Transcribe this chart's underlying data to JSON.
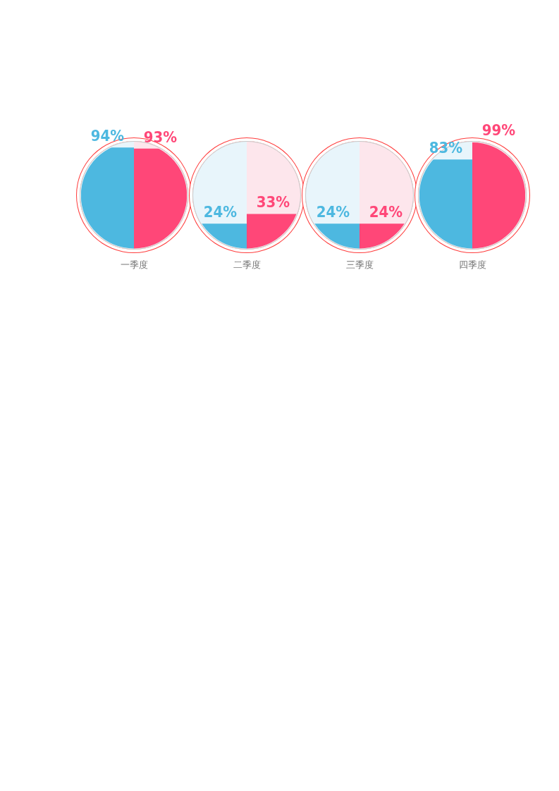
{
  "chart_data": {
    "type": "bar",
    "categories": [
      "一季度",
      "二季度",
      "三季度",
      "四季度"
    ],
    "series": [
      {
        "color": "#4db8e0",
        "values": [
          94,
          24,
          24,
          83
        ],
        "value_labels": [
          "94%",
          "24%",
          "24%",
          "83%"
        ]
      },
      {
        "color": "#ff4778",
        "values": [
          93,
          33,
          24,
          99
        ],
        "value_labels": [
          "93%",
          "33%",
          "24%",
          "99%"
        ]
      }
    ]
  }
}
